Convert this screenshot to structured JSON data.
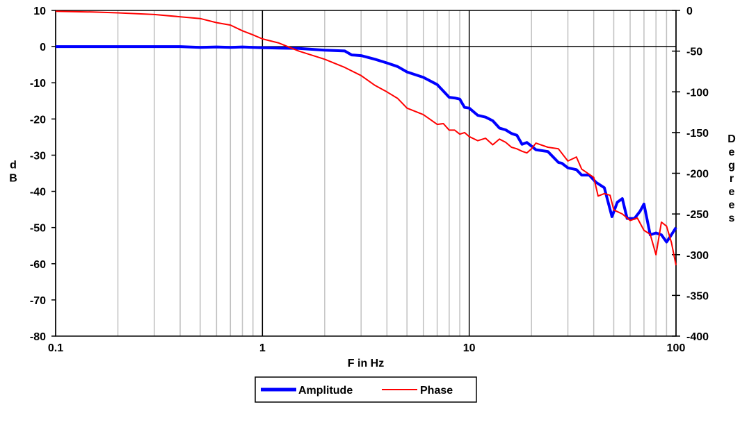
{
  "chart_data": {
    "type": "line",
    "xlabel": "F in Hz",
    "ylabel": "dB",
    "y2label": "Degrees",
    "x_scale": "log",
    "xlim": [
      0.1,
      100
    ],
    "ylim": [
      -80,
      10
    ],
    "y2lim": [
      -400,
      0
    ],
    "x_ticks": [
      "0.1",
      "1",
      "10",
      "100"
    ],
    "y_ticks": [
      "10",
      "0",
      "-10",
      "-20",
      "-30",
      "-40",
      "-50",
      "-60",
      "-70",
      "-80"
    ],
    "y2_ticks": [
      "0",
      "-50",
      "-100",
      "-150",
      "-200",
      "-250",
      "-300",
      "-350",
      "-400"
    ],
    "grid": true,
    "legend_position": "bottom-center",
    "series": [
      {
        "name": "Amplitude",
        "axis": "left",
        "color": "#0000ff",
        "points": [
          [
            0.1,
            0
          ],
          [
            0.2,
            0
          ],
          [
            0.4,
            0
          ],
          [
            0.5,
            -0.2
          ],
          [
            0.6,
            -0.1
          ],
          [
            0.7,
            -0.2
          ],
          [
            0.8,
            -0.1
          ],
          [
            1.0,
            -0.3
          ],
          [
            1.2,
            -0.4
          ],
          [
            1.5,
            -0.5
          ],
          [
            2.0,
            -1.0
          ],
          [
            2.5,
            -1.2
          ],
          [
            2.7,
            -2.3
          ],
          [
            3.0,
            -2.5
          ],
          [
            3.5,
            -3.5
          ],
          [
            4.0,
            -4.5
          ],
          [
            4.5,
            -5.5
          ],
          [
            5.0,
            -7.0
          ],
          [
            6.0,
            -8.5
          ],
          [
            7.0,
            -10.5
          ],
          [
            8.0,
            -14.0
          ],
          [
            8.5,
            -14.2
          ],
          [
            9.0,
            -14.5
          ],
          [
            9.5,
            -16.8
          ],
          [
            10.0,
            -17.0
          ],
          [
            11.0,
            -19.0
          ],
          [
            12.0,
            -19.5
          ],
          [
            13.0,
            -20.5
          ],
          [
            14.0,
            -22.5
          ],
          [
            15.0,
            -23.0
          ],
          [
            16.0,
            -24.0
          ],
          [
            17.0,
            -24.5
          ],
          [
            18.0,
            -27.0
          ],
          [
            19.0,
            -26.5
          ],
          [
            20.0,
            -27.5
          ],
          [
            21.0,
            -28.5
          ],
          [
            24.0,
            -29.0
          ],
          [
            27.0,
            -32.0
          ],
          [
            28.0,
            -32.2
          ],
          [
            30.0,
            -33.5
          ],
          [
            33.0,
            -34.0
          ],
          [
            35.0,
            -35.5
          ],
          [
            38.0,
            -35.5
          ],
          [
            41.0,
            -37.5
          ],
          [
            45.0,
            -39.0
          ],
          [
            49.0,
            -47.0
          ],
          [
            52.0,
            -43.0
          ],
          [
            55.0,
            -42.0
          ],
          [
            58.0,
            -47.5
          ],
          [
            63.0,
            -47.5
          ],
          [
            67.0,
            -45.5
          ],
          [
            70.0,
            -43.5
          ],
          [
            75.0,
            -52.0
          ],
          [
            80.0,
            -51.5
          ],
          [
            85.0,
            -52.0
          ],
          [
            90.0,
            -54.0
          ],
          [
            95.0,
            -52.0
          ],
          [
            100.0,
            -50.0
          ]
        ]
      },
      {
        "name": "Phase",
        "axis": "right",
        "color": "#ff0000",
        "points": [
          [
            0.1,
            -1
          ],
          [
            0.15,
            -2
          ],
          [
            0.2,
            -3
          ],
          [
            0.3,
            -5
          ],
          [
            0.5,
            -10
          ],
          [
            0.6,
            -15
          ],
          [
            0.7,
            -18
          ],
          [
            0.8,
            -25
          ],
          [
            0.9,
            -30
          ],
          [
            1.0,
            -35
          ],
          [
            1.2,
            -40
          ],
          [
            1.5,
            -50
          ],
          [
            2.0,
            -60
          ],
          [
            2.5,
            -70
          ],
          [
            3.0,
            -80
          ],
          [
            3.5,
            -92
          ],
          [
            4.0,
            -100
          ],
          [
            4.5,
            -108
          ],
          [
            5.0,
            -120
          ],
          [
            6.0,
            -128
          ],
          [
            7.0,
            -140
          ],
          [
            7.5,
            -139
          ],
          [
            8.0,
            -147
          ],
          [
            8.5,
            -147
          ],
          [
            9.0,
            -152
          ],
          [
            9.5,
            -150
          ],
          [
            10.0,
            -155
          ],
          [
            11.0,
            -160
          ],
          [
            12.0,
            -157
          ],
          [
            13.0,
            -165
          ],
          [
            14.0,
            -158
          ],
          [
            15.0,
            -162
          ],
          [
            16.0,
            -168
          ],
          [
            17.0,
            -170
          ],
          [
            18.0,
            -173
          ],
          [
            19.0,
            -175
          ],
          [
            20.0,
            -170
          ],
          [
            21.0,
            -163
          ],
          [
            24.0,
            -168
          ],
          [
            27.0,
            -170
          ],
          [
            30.0,
            -185
          ],
          [
            33.0,
            -180
          ],
          [
            35.0,
            -195
          ],
          [
            40.0,
            -205
          ],
          [
            42.0,
            -228
          ],
          [
            45.0,
            -225
          ],
          [
            48.0,
            -227
          ],
          [
            50.0,
            -245
          ],
          [
            55.0,
            -250
          ],
          [
            60.0,
            -258
          ],
          [
            65.0,
            -255
          ],
          [
            70.0,
            -270
          ],
          [
            75.0,
            -275
          ],
          [
            80.0,
            -300
          ],
          [
            85.0,
            -260
          ],
          [
            90.0,
            -265
          ],
          [
            95.0,
            -285
          ],
          [
            100.0,
            -313
          ]
        ]
      }
    ]
  }
}
